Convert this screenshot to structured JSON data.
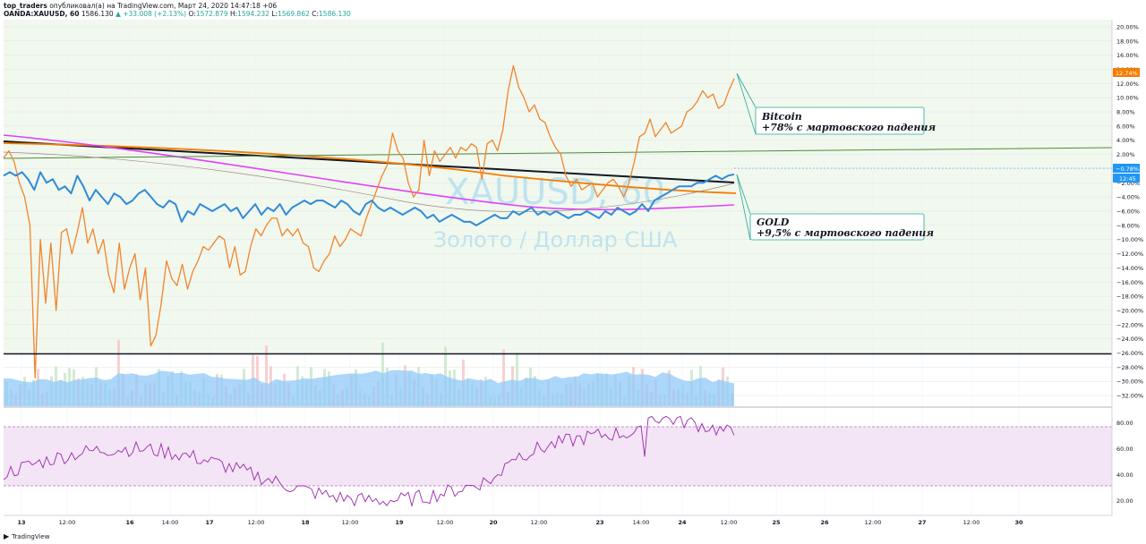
{
  "header": {
    "author": "top_traders",
    "published": "опубликовал(а) на TradingView.com, Март 24, 2020 14:47:18 +06",
    "symbol": "OANDA:XAUUSD, 60",
    "price": "1586.130",
    "change": "▲ +33.008 (+2.13%)",
    "o_label": "O:",
    "o_value": "1572.879",
    "h_label": "H:",
    "h_value": "1594.232",
    "l_label": "L:",
    "l_value": "1569.862",
    "c_label": "C:",
    "c_value": "1586.130"
  },
  "watermark": {
    "symbol": "XAUUSD, 60",
    "name": "Золото / Доллар США"
  },
  "annotations": {
    "bitcoin_title": "Bitcoin",
    "bitcoin_text": "+78% с мартовского падения",
    "gold_title": "GOLD",
    "gold_text": "+9,5% с мартовского падения"
  },
  "price_scale_badges": {
    "orange": "12.74%",
    "blue": "−0.78%",
    "time": "12:45"
  },
  "footer": {
    "brand": "TradingView"
  },
  "colors": {
    "bitcoin": "#f0852d",
    "gold": "#2f8bd6",
    "ma_black": "#131722",
    "ma_orange": "#f57c00",
    "ma_magenta": "#e040fb",
    "trend_green": "#4f8a3c",
    "volume": "#90caf9",
    "rsi": "#9c27b0",
    "rsi_band": "#f3e5f5",
    "plot_bg": "#f1f8ee"
  },
  "chart_data": {
    "type": "line",
    "y_unit": "%",
    "ylim": [
      -33,
      21
    ],
    "y_ticks": [
      "20.00%",
      "18.00%",
      "16.00%",
      "14.00%",
      "12.00%",
      "10.00%",
      "8.00%",
      "6.00%",
      "4.00%",
      "2.00%",
      "0.00%",
      "−2.00%",
      "−4.00%",
      "−6.00%",
      "−8.00%",
      "−10.00%",
      "−12.00%",
      "−14.00%",
      "−16.00%",
      "−18.00%",
      "−20.00%",
      "−22.00%",
      "−24.00%",
      "−26.00%",
      "−28.00%",
      "−30.00%",
      "−32.00%"
    ],
    "x_ticks": [
      "13",
      "12:00",
      "16",
      "14:00",
      "17",
      "12:00",
      "18",
      "12:00",
      "19",
      "12:00",
      "20",
      "12:00",
      "23",
      "14:00",
      "24",
      "12:00",
      "25",
      "26",
      "12:00",
      "27",
      "12:00",
      "30"
    ],
    "series": [
      {
        "name": "Bitcoin",
        "values": [
          1.5,
          2.5,
          1.0,
          -2.0,
          -4.0,
          -8.0,
          -29.5,
          -10.0,
          -19.0,
          -10.5,
          -20.0,
          -9.0,
          -8.5,
          -12.0,
          -9.0,
          -5.5,
          -10.5,
          -8.5,
          -12.0,
          -10.0,
          -15.0,
          -17.5,
          -10.5,
          -17.0,
          -14.0,
          -12.0,
          -18.5,
          -14.0,
          -25.0,
          -23.5,
          -19.0,
          -13.0,
          -15.5,
          -16.5,
          -13.5,
          -17.0,
          -14.5,
          -13.0,
          -11.0,
          -11.5,
          -10.5,
          -9.5,
          -10.0,
          -14.0,
          -11.0,
          -15.0,
          -14.5,
          -11.0,
          -8.5,
          -9.5,
          -8.0,
          -7.0,
          -7.0,
          -9.5,
          -8.5,
          -9.5,
          -8.5,
          -10.5,
          -11.0,
          -14.0,
          -14.5,
          -13.0,
          -12.0,
          -9.5,
          -11.0,
          -10.0,
          -8.5,
          -9.0,
          -9.5,
          -7.0,
          -5.0,
          -3.0,
          -1.0,
          0.5,
          5.0,
          2.5,
          1.5,
          -2.0,
          -4.0,
          -3.0,
          4.0,
          -1.0,
          2.5,
          1.0,
          2.0,
          3.0,
          1.5,
          3.0,
          2.5,
          3.5,
          3.0,
          -1.5,
          3.5,
          4.0,
          2.5,
          5.5,
          11.0,
          14.5,
          11.5,
          10.0,
          8.0,
          9.0,
          7.0,
          6.5,
          4.5,
          3.0,
          2.0,
          -1.0,
          -2.5,
          -1.5,
          -3.0,
          -2.5,
          -2.0,
          -4.0,
          -3.0,
          -2.0,
          -1.5,
          -2.5,
          -4.0,
          -2.0,
          1.0,
          4.5,
          5.0,
          7.0,
          4.5,
          5.5,
          6.5,
          5.0,
          5.5,
          6.0,
          8.0,
          8.5,
          9.5,
          11.0,
          10.0,
          10.5,
          8.5,
          9.0,
          11.0,
          12.7
        ]
      },
      {
        "name": "GOLD",
        "values": [
          -1.0,
          -0.5,
          -1.0,
          -0.5,
          -1.5,
          -3.0,
          -0.5,
          -2.0,
          -1.5,
          -3.0,
          -2.5,
          -3.5,
          -1.0,
          -2.5,
          -4.5,
          -3.0,
          -4.0,
          -5.0,
          -3.5,
          -4.0,
          -5.0,
          -4.5,
          -3.5,
          -3.0,
          -4.0,
          -5.0,
          -5.5,
          -4.5,
          -5.0,
          -7.5,
          -6.0,
          -6.5,
          -5.0,
          -5.5,
          -6.0,
          -5.5,
          -5.0,
          -6.0,
          -5.5,
          -7.0,
          -6.0,
          -5.0,
          -6.5,
          -5.5,
          -6.0,
          -5.0,
          -6.5,
          -5.5,
          -5.0,
          -4.5,
          -5.0,
          -4.5,
          -4.5,
          -5.0,
          -5.5,
          -4.5,
          -5.0,
          -6.0,
          -6.5,
          -5.0,
          -4.5,
          -5.5,
          -6.0,
          -5.5,
          -6.0,
          -6.5,
          -6.0,
          -5.5,
          -6.0,
          -7.0,
          -6.5,
          -7.5,
          -7.0,
          -6.5,
          -7.0,
          -7.5,
          -7.5,
          -8.0,
          -7.5,
          -7.0,
          -6.5,
          -7.0,
          -7.0,
          -6.0,
          -6.5,
          -6.0,
          -5.5,
          -6.5,
          -6.0,
          -6.5,
          -6.0,
          -6.5,
          -7.0,
          -6.5,
          -6.5,
          -6.0,
          -6.5,
          -7.0,
          -6.0,
          -6.5,
          -5.5,
          -6.0,
          -6.5,
          -6.0,
          -5.0,
          -6.0,
          -4.5,
          -4.0,
          -3.5,
          -3.0,
          -2.5,
          -2.5,
          -2.5,
          -2.0,
          -2.0,
          -1.5,
          -1.0,
          -1.5,
          -1.0,
          -0.8
        ]
      }
    ]
  }
}
